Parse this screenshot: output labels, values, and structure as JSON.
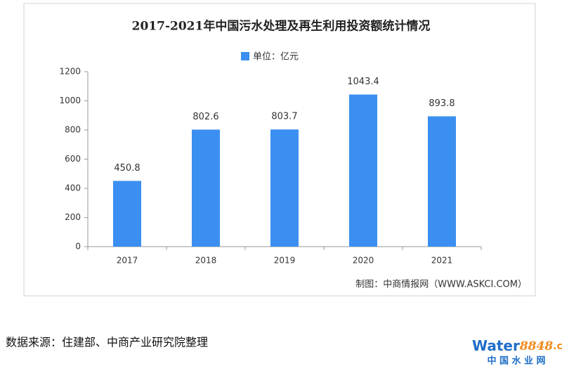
{
  "chart_data": {
    "type": "bar",
    "title": "2017-2021年中国污水处理及再生利用投资额统计情况",
    "categories": [
      "2017",
      "2018",
      "2019",
      "2020",
      "2021"
    ],
    "series": [
      {
        "name": "单位：亿元",
        "color": "#3b8ff0",
        "values": [
          450.8,
          802.6,
          803.7,
          1043.4,
          893.8
        ]
      }
    ],
    "ylim": [
      0,
      1200
    ],
    "yticks": [
      0,
      200,
      400,
      600,
      800,
      1000,
      1200
    ],
    "grid": false,
    "legend": "top",
    "credit": "制图：中商情报网（WWW.ASKCI.COM）"
  },
  "source": "数据来源：住建部、中商产业研究院整理",
  "logo": {
    "brand": "Water",
    "number": "8848",
    "domain": ".com",
    "tagline": "中 国 水 业 网"
  }
}
